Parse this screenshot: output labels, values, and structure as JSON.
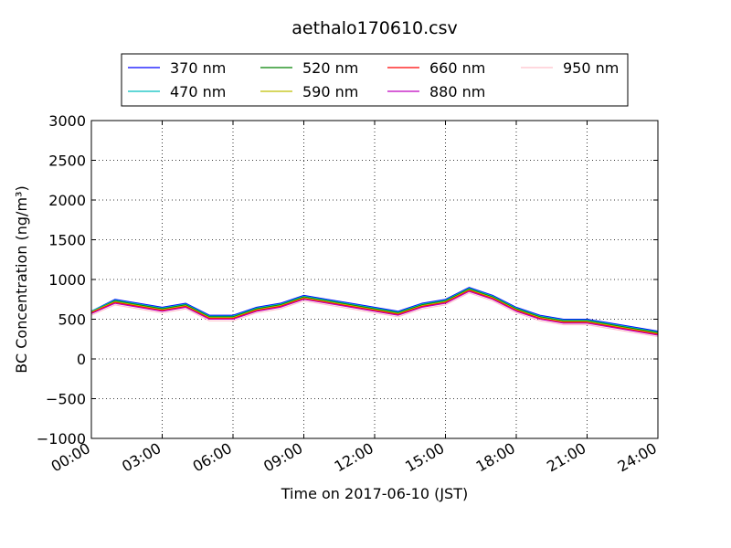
{
  "chart_data": {
    "type": "line",
    "title": "aethalo170610.csv",
    "xlabel": "Time on 2017-06-10 (JST)",
    "ylabel": "BC Concentration (ng/m³)",
    "ylim": [
      -1000,
      3000
    ],
    "yticks": [
      -1000,
      -500,
      0,
      500,
      1000,
      1500,
      2000,
      2500,
      3000
    ],
    "xlim": [
      "00:00",
      "24:00"
    ],
    "xticks": [
      "00:00",
      "03:00",
      "06:00",
      "09:00",
      "12:00",
      "15:00",
      "18:00",
      "21:00",
      "24:00"
    ],
    "grid": true,
    "legend_position": "top",
    "series": [
      {
        "name": "370 nm",
        "color": "#0000ff",
        "points": [
          [
            "00:00",
            600
          ],
          [
            "01:00",
            750
          ],
          [
            "02:00",
            700
          ],
          [
            "03:00",
            650
          ],
          [
            "04:00",
            700
          ],
          [
            "05:00",
            550
          ],
          [
            "06:00",
            550
          ],
          [
            "07:00",
            650
          ],
          [
            "08:00",
            700
          ],
          [
            "09:00",
            800
          ],
          [
            "10:00",
            750
          ],
          [
            "11:00",
            700
          ],
          [
            "12:00",
            650
          ],
          [
            "13:00",
            600
          ],
          [
            "14:00",
            700
          ],
          [
            "15:00",
            750
          ],
          [
            "16:00",
            900
          ],
          [
            "17:00",
            800
          ],
          [
            "18:00",
            650
          ],
          [
            "19:00",
            550
          ],
          [
            "20:00",
            500
          ],
          [
            "21:00",
            500
          ],
          [
            "22:00",
            450
          ],
          [
            "23:00",
            400
          ],
          [
            "24:00",
            350
          ]
        ]
      },
      {
        "name": "470 nm",
        "color": "#00bfbf",
        "points": [
          [
            "00:00",
            600
          ],
          [
            "01:00",
            740
          ],
          [
            "02:00",
            690
          ],
          [
            "03:00",
            640
          ],
          [
            "04:00",
            690
          ],
          [
            "05:00",
            540
          ],
          [
            "06:00",
            540
          ],
          [
            "07:00",
            640
          ],
          [
            "08:00",
            690
          ],
          [
            "09:00",
            790
          ],
          [
            "10:00",
            740
          ],
          [
            "11:00",
            690
          ],
          [
            "12:00",
            640
          ],
          [
            "13:00",
            590
          ],
          [
            "14:00",
            690
          ],
          [
            "15:00",
            740
          ],
          [
            "16:00",
            890
          ],
          [
            "17:00",
            790
          ],
          [
            "18:00",
            640
          ],
          [
            "19:00",
            540
          ],
          [
            "20:00",
            490
          ],
          [
            "21:00",
            490
          ],
          [
            "22:00",
            440
          ],
          [
            "23:00",
            390
          ],
          [
            "24:00",
            340
          ]
        ]
      },
      {
        "name": "520 nm",
        "color": "#008000",
        "points": [
          [
            "00:00",
            590
          ],
          [
            "01:00",
            730
          ],
          [
            "02:00",
            680
          ],
          [
            "03:00",
            630
          ],
          [
            "04:00",
            680
          ],
          [
            "05:00",
            530
          ],
          [
            "06:00",
            530
          ],
          [
            "07:00",
            630
          ],
          [
            "08:00",
            680
          ],
          [
            "09:00",
            780
          ],
          [
            "10:00",
            730
          ],
          [
            "11:00",
            680
          ],
          [
            "12:00",
            630
          ],
          [
            "13:00",
            580
          ],
          [
            "14:00",
            680
          ],
          [
            "15:00",
            730
          ],
          [
            "16:00",
            880
          ],
          [
            "17:00",
            780
          ],
          [
            "18:00",
            630
          ],
          [
            "19:00",
            530
          ],
          [
            "20:00",
            480
          ],
          [
            "21:00",
            480
          ],
          [
            "22:00",
            430
          ],
          [
            "23:00",
            380
          ],
          [
            "24:00",
            330
          ]
        ]
      },
      {
        "name": "590 nm",
        "color": "#bfbf00",
        "points": [
          [
            "00:00",
            590
          ],
          [
            "01:00",
            720
          ],
          [
            "02:00",
            670
          ],
          [
            "03:00",
            620
          ],
          [
            "04:00",
            670
          ],
          [
            "05:00",
            520
          ],
          [
            "06:00",
            520
          ],
          [
            "07:00",
            620
          ],
          [
            "08:00",
            670
          ],
          [
            "09:00",
            770
          ],
          [
            "10:00",
            720
          ],
          [
            "11:00",
            670
          ],
          [
            "12:00",
            620
          ],
          [
            "13:00",
            570
          ],
          [
            "14:00",
            670
          ],
          [
            "15:00",
            720
          ],
          [
            "16:00",
            870
          ],
          [
            "17:00",
            770
          ],
          [
            "18:00",
            620
          ],
          [
            "19:00",
            520
          ],
          [
            "20:00",
            470
          ],
          [
            "21:00",
            470
          ],
          [
            "22:00",
            420
          ],
          [
            "23:00",
            370
          ],
          [
            "24:00",
            320
          ]
        ]
      },
      {
        "name": "660 nm",
        "color": "#ff0000",
        "points": [
          [
            "00:00",
            580
          ],
          [
            "01:00",
            710
          ],
          [
            "02:00",
            660
          ],
          [
            "03:00",
            610
          ],
          [
            "04:00",
            660
          ],
          [
            "05:00",
            510
          ],
          [
            "06:00",
            510
          ],
          [
            "07:00",
            610
          ],
          [
            "08:00",
            660
          ],
          [
            "09:00",
            760
          ],
          [
            "10:00",
            710
          ],
          [
            "11:00",
            660
          ],
          [
            "12:00",
            610
          ],
          [
            "13:00",
            560
          ],
          [
            "14:00",
            660
          ],
          [
            "15:00",
            710
          ],
          [
            "16:00",
            860
          ],
          [
            "17:00",
            760
          ],
          [
            "18:00",
            610
          ],
          [
            "19:00",
            510
          ],
          [
            "20:00",
            460
          ],
          [
            "21:00",
            460
          ],
          [
            "22:00",
            410
          ],
          [
            "23:00",
            360
          ],
          [
            "24:00",
            310
          ]
        ]
      },
      {
        "name": "880 nm",
        "color": "#bf00bf",
        "points": [
          [
            "00:00",
            570
          ],
          [
            "01:00",
            700
          ],
          [
            "02:00",
            650
          ],
          [
            "03:00",
            600
          ],
          [
            "04:00",
            650
          ],
          [
            "05:00",
            500
          ],
          [
            "06:00",
            500
          ],
          [
            "07:00",
            600
          ],
          [
            "08:00",
            650
          ],
          [
            "09:00",
            750
          ],
          [
            "10:00",
            700
          ],
          [
            "11:00",
            650
          ],
          [
            "12:00",
            600
          ],
          [
            "13:00",
            550
          ],
          [
            "14:00",
            650
          ],
          [
            "15:00",
            700
          ],
          [
            "16:00",
            850
          ],
          [
            "17:00",
            750
          ],
          [
            "18:00",
            600
          ],
          [
            "19:00",
            500
          ],
          [
            "20:00",
            450
          ],
          [
            "21:00",
            450
          ],
          [
            "22:00",
            400
          ],
          [
            "23:00",
            350
          ],
          [
            "24:00",
            300
          ]
        ]
      },
      {
        "name": "950 nm",
        "color": "#ffc0cb",
        "points": [
          [
            "00:00",
            550
          ],
          [
            "01:00",
            680
          ],
          [
            "02:00",
            630
          ],
          [
            "03:00",
            580
          ],
          [
            "04:00",
            630
          ],
          [
            "05:00",
            480
          ],
          [
            "06:00",
            480
          ],
          [
            "07:00",
            580
          ],
          [
            "08:00",
            630
          ],
          [
            "09:00",
            730
          ],
          [
            "10:00",
            680
          ],
          [
            "11:00",
            630
          ],
          [
            "12:00",
            580
          ],
          [
            "13:00",
            530
          ],
          [
            "14:00",
            630
          ],
          [
            "15:00",
            680
          ],
          [
            "16:00",
            830
          ],
          [
            "17:00",
            730
          ],
          [
            "18:00",
            580
          ],
          [
            "19:00",
            480
          ],
          [
            "20:00",
            430
          ],
          [
            "21:00",
            430
          ],
          [
            "22:00",
            380
          ],
          [
            "23:00",
            330
          ],
          [
            "24:00",
            280
          ]
        ]
      }
    ]
  }
}
